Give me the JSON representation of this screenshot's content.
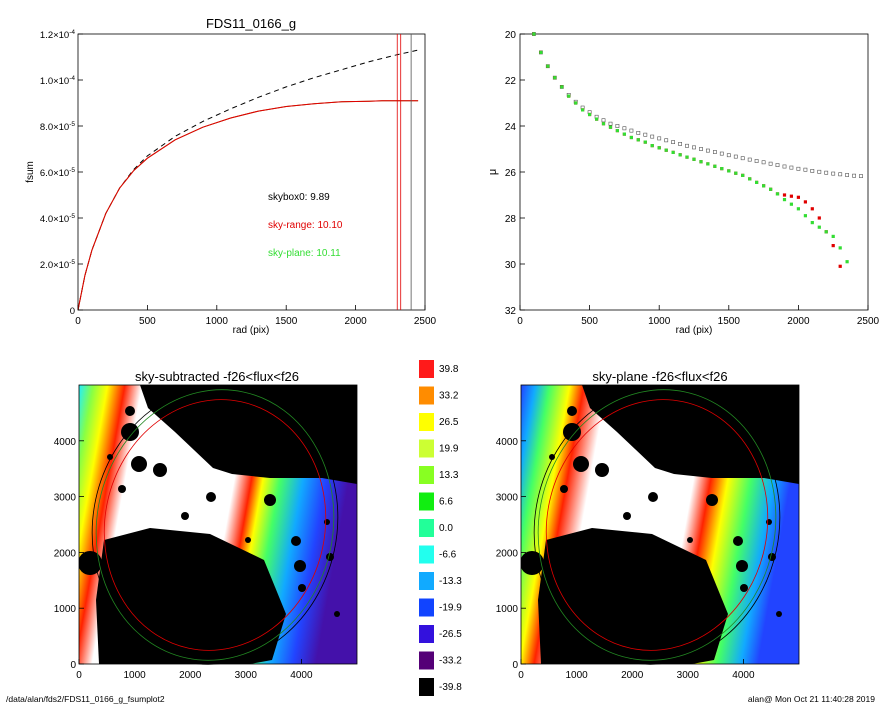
{
  "footer": {
    "path": "/data/alan/fds2/FDS11_0166_g_fsumplot2",
    "stamp": "alan@  Mon Oct 21 11:40:28 2019"
  },
  "colors": {
    "observed": "#8a5a00",
    "sky_range": "#e00000",
    "sky_plane": "#33dd33",
    "dashed": "#000000",
    "skybox0_profile": "#555555"
  },
  "chart_data": [
    {
      "type": "line",
      "name": "fsum-curve",
      "title": "FDS11_0166_g",
      "xlabel": "rad (pix)",
      "ylabel": "fsum",
      "xlim": [
        0,
        2500
      ],
      "ylim": [
        0,
        0.00012
      ],
      "xticks": [
        0,
        500,
        1000,
        1500,
        2000,
        2500
      ],
      "ytick_labels": [
        {
          "value": 0,
          "mantissa": "0",
          "exp": ""
        },
        {
          "value": 2e-05,
          "mantissa": "2.0×10",
          "exp": "-5"
        },
        {
          "value": 4e-05,
          "mantissa": "4.0×10",
          "exp": "-5"
        },
        {
          "value": 6e-05,
          "mantissa": "6.0×10",
          "exp": "-5"
        },
        {
          "value": 8e-05,
          "mantissa": "8.0×10",
          "exp": "-5"
        },
        {
          "value": 0.0001,
          "mantissa": "1.0×10",
          "exp": "-4"
        },
        {
          "value": 0.00012,
          "mantissa": "1.2×10",
          "exp": "-4"
        }
      ],
      "series": [
        {
          "color_key": "dashed",
          "style": "dashed",
          "x": [
            0,
            50,
            100,
            200,
            300,
            400,
            500,
            700,
            900,
            1100,
            1300,
            1500,
            1700,
            1900,
            2100,
            2300,
            2450
          ],
          "y": [
            0,
            1.5e-05,
            2.6e-05,
            4.2e-05,
            5.3e-05,
            6.1e-05,
            6.7e-05,
            7.55e-05,
            8.2e-05,
            8.75e-05,
            9.25e-05,
            9.7e-05,
            0.000101,
            0.0001045,
            0.000108,
            0.000111,
            0.000113
          ]
        },
        {
          "color_key": "observed",
          "style": "solid",
          "x": [
            0,
            50,
            100,
            200,
            300,
            400,
            500,
            700,
            900,
            1100,
            1300,
            1500,
            1700,
            1900,
            2100,
            2200,
            2300,
            2450
          ],
          "y": [
            0,
            1.5e-05,
            2.6e-05,
            4.2e-05,
            5.3e-05,
            6.05e-05,
            6.6e-05,
            7.4e-05,
            7.95e-05,
            8.35e-05,
            8.65e-05,
            8.85e-05,
            8.97e-05,
            9.05e-05,
            9.08e-05,
            9.1e-05,
            9.1e-05,
            9.1e-05
          ]
        },
        {
          "color_key": "sky_range",
          "style": "solid",
          "x": [
            0,
            50,
            100,
            200,
            300,
            400,
            500,
            700,
            900,
            1100,
            1300,
            1500,
            1700,
            1900,
            2100,
            2200,
            2300,
            2450
          ],
          "y": [
            0,
            1.5e-05,
            2.6e-05,
            4.2e-05,
            5.3e-05,
            6.05e-05,
            6.6e-05,
            7.4e-05,
            7.95e-05,
            8.35e-05,
            8.65e-05,
            8.85e-05,
            8.97e-05,
            9.05e-05,
            9.08e-05,
            9.1e-05,
            9.1e-05,
            9.1e-05
          ]
        }
      ],
      "vlines": [
        {
          "x": 2300,
          "color_key": "sky_range"
        },
        {
          "x": 2325,
          "color_key": "sky_range"
        },
        {
          "x": 2400,
          "color_key": "skybox0_profile"
        }
      ],
      "annotations": [
        {
          "label": "skybox0:",
          "value": "9.89",
          "color_key": "dashed"
        },
        {
          "label": "sky-range:",
          "value": "10.10",
          "color_key": "sky_range"
        },
        {
          "label": "sky-plane:",
          "value": "10.11",
          "color_key": "sky_plane"
        }
      ]
    },
    {
      "type": "scatter",
      "name": "surface-brightness-profile",
      "xlabel": "rad (pix)",
      "ylabel": "μ",
      "xlim": [
        0,
        2500
      ],
      "ylim": [
        32,
        20
      ],
      "inverted_y": true,
      "xticks": [
        0,
        500,
        1000,
        1500,
        2000,
        2500
      ],
      "yticks": [
        20,
        22,
        24,
        26,
        28,
        30,
        32
      ],
      "series": [
        {
          "color_key": "skybox0_profile",
          "marker": "open-square",
          "x": [
            100,
            150,
            200,
            250,
            300,
            350,
            400,
            450,
            500,
            550,
            600,
            650,
            700,
            750,
            800,
            850,
            900,
            950,
            1000,
            1050,
            1100,
            1150,
            1200,
            1250,
            1300,
            1350,
            1400,
            1450,
            1500,
            1550,
            1600,
            1650,
            1700,
            1750,
            1800,
            1850,
            1900,
            1950,
            2000,
            2050,
            2100,
            2150,
            2200,
            2250,
            2300,
            2350,
            2400,
            2450
          ],
          "y": [
            20.0,
            20.8,
            21.4,
            21.9,
            22.3,
            22.65,
            22.95,
            23.2,
            23.4,
            23.6,
            23.75,
            23.9,
            24.0,
            24.1,
            24.2,
            24.3,
            24.38,
            24.46,
            24.54,
            24.62,
            24.7,
            24.78,
            24.86,
            24.93,
            25.0,
            25.07,
            25.13,
            25.2,
            25.27,
            25.33,
            25.4,
            25.46,
            25.52,
            25.58,
            25.64,
            25.7,
            25.76,
            25.81,
            25.86,
            25.9,
            25.95,
            25.99,
            26.03,
            26.07,
            26.1,
            26.13,
            26.16,
            26.18
          ]
        },
        {
          "color_key": "sky_range",
          "marker": "filled-square",
          "x": [
            100,
            150,
            200,
            250,
            300,
            350,
            400,
            450,
            500,
            550,
            600,
            650,
            700,
            750,
            800,
            850,
            900,
            950,
            1000,
            1050,
            1100,
            1150,
            1200,
            1250,
            1300,
            1350,
            1400,
            1450,
            1500,
            1550,
            1600,
            1650,
            1700,
            1750,
            1800,
            1850,
            1900,
            1950,
            2000,
            2050,
            2100,
            2150,
            2200,
            2250,
            2300
          ],
          "y": [
            20.0,
            20.8,
            21.4,
            21.9,
            22.3,
            22.7,
            23.0,
            23.3,
            23.5,
            23.7,
            23.9,
            24.05,
            24.2,
            24.35,
            24.5,
            24.6,
            24.7,
            24.85,
            24.95,
            25.05,
            25.15,
            25.25,
            25.35,
            25.45,
            25.55,
            25.65,
            25.75,
            25.85,
            25.95,
            26.05,
            26.15,
            26.3,
            26.45,
            26.6,
            26.75,
            26.95,
            27.0,
            27.05,
            27.1,
            27.3,
            27.6,
            28.0,
            28.6,
            29.2,
            30.1
          ]
        },
        {
          "color_key": "sky_plane",
          "marker": "filled-square",
          "x": [
            100,
            150,
            200,
            250,
            300,
            350,
            400,
            450,
            500,
            550,
            600,
            650,
            700,
            750,
            800,
            850,
            900,
            950,
            1000,
            1050,
            1100,
            1150,
            1200,
            1250,
            1300,
            1350,
            1400,
            1450,
            1500,
            1550,
            1600,
            1650,
            1700,
            1750,
            1800,
            1850,
            1900,
            1950,
            2000,
            2050,
            2100,
            2150,
            2200,
            2250,
            2300,
            2350
          ],
          "y": [
            20.0,
            20.8,
            21.4,
            21.9,
            22.3,
            22.7,
            23.0,
            23.3,
            23.5,
            23.7,
            23.9,
            24.05,
            24.2,
            24.35,
            24.5,
            24.6,
            24.7,
            24.85,
            24.95,
            25.05,
            25.15,
            25.25,
            25.35,
            25.45,
            25.55,
            25.65,
            25.75,
            25.85,
            25.95,
            26.05,
            26.15,
            26.3,
            26.45,
            26.6,
            26.75,
            26.95,
            27.2,
            27.4,
            27.6,
            27.9,
            28.2,
            28.4,
            28.6,
            28.8,
            29.3,
            29.9
          ]
        }
      ]
    },
    {
      "type": "heatmap",
      "name": "sky-subtracted-image",
      "title": "sky-subtracted -f26<flux<f26",
      "xlim": [
        0,
        5000
      ],
      "ylim": [
        0,
        5000
      ],
      "xticks": [
        0,
        1000,
        2000,
        3000,
        4000
      ],
      "yticks": [
        0,
        1000,
        2000,
        3000,
        4000
      ],
      "variant": "sky-subtracted"
    },
    {
      "type": "heatmap",
      "name": "sky-plane-image",
      "title": "sky-plane -f26<flux<f26",
      "xlim": [
        0,
        5000
      ],
      "ylim": [
        0,
        5000
      ],
      "xticks": [
        0,
        1000,
        2000,
        3000,
        4000
      ],
      "yticks": [
        0,
        1000,
        2000,
        3000,
        4000
      ],
      "variant": "sky-plane"
    },
    {
      "type": "colorbar",
      "name": "flux-colorbar",
      "labels": [
        "39.8",
        "33.2",
        "26.5",
        "19.9",
        "13.3",
        "6.6",
        "0.0",
        "-6.6",
        "-13.3",
        "-19.9",
        "-26.5",
        "-33.2",
        "-39.8"
      ],
      "colors": [
        "#ff1a1a",
        "#ff8c00",
        "#ffff00",
        "#ccff33",
        "#88ff22",
        "#11ee11",
        "#22ff99",
        "#22ffee",
        "#11aaff",
        "#1144ff",
        "#3311dd",
        "#550077",
        "#000000"
      ]
    }
  ]
}
